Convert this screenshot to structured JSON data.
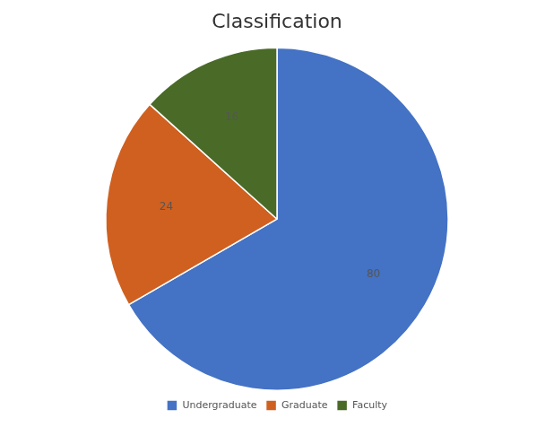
{
  "chart_data": {
    "type": "pie",
    "title": "Classification",
    "categories": [
      "Undergraduate",
      "Graduate",
      "Faculty"
    ],
    "values": [
      80,
      24,
      16
    ],
    "colors": [
      "#4472C4",
      "#D06020",
      "#4A6B28"
    ],
    "data_labels": true,
    "legend": "bottom"
  }
}
